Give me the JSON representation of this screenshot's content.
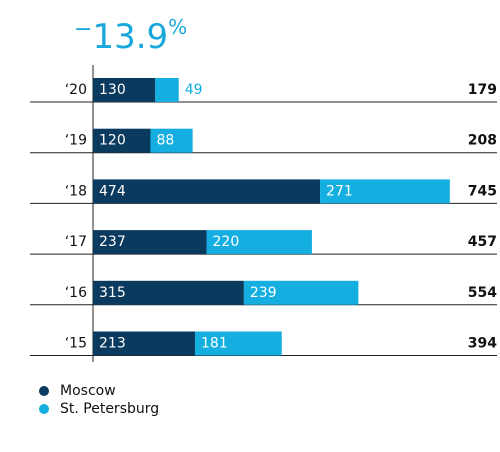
{
  "chart_data": {
    "type": "stacked-barh",
    "headline": {
      "sign": "−",
      "number": "13.9",
      "unit": "%"
    },
    "categories": [
      "‘20",
      "‘19",
      "‘18",
      "‘17",
      "‘16",
      "‘15"
    ],
    "series": [
      {
        "name": "Moscow",
        "color": "#0b3a5f",
        "values": [
          130,
          120,
          474,
          237,
          315,
          213
        ]
      },
      {
        "name": "St. Petersburg",
        "color": "#14afe0",
        "values": [
          49,
          88,
          271,
          220,
          239,
          181
        ]
      }
    ],
    "totals": [
      179,
      208,
      745,
      457,
      554,
      394
    ]
  }
}
